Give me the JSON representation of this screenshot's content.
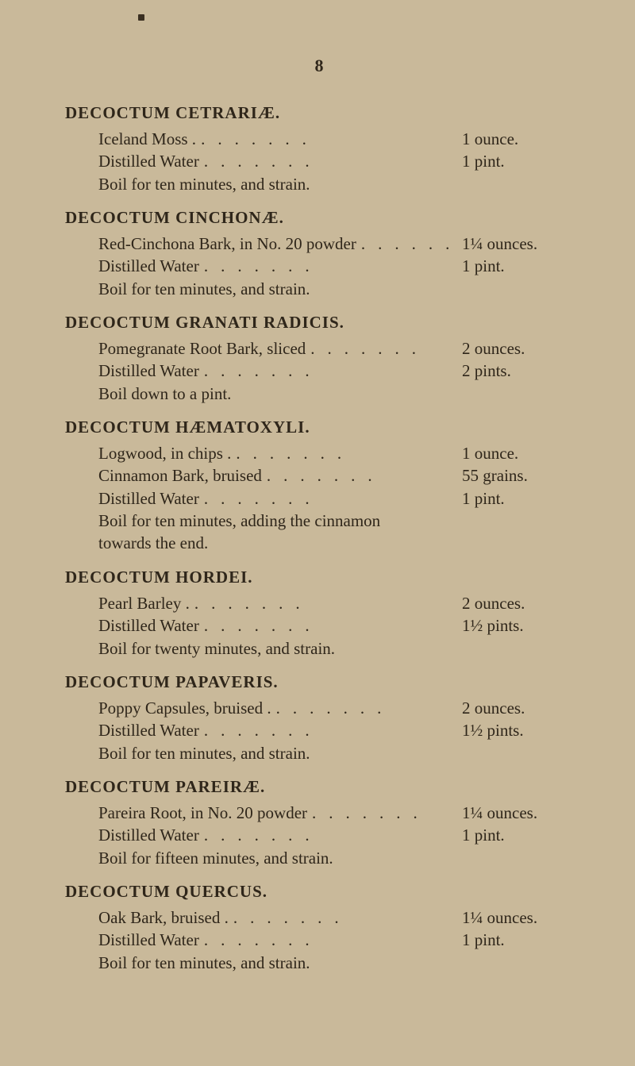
{
  "page_number": "8",
  "dot_fill": ".......",
  "recipes": [
    {
      "title": "DECOCTUM CETRARIÆ.",
      "lines": [
        {
          "ingredient": "Iceland Moss .",
          "amount": "1 ounce."
        },
        {
          "ingredient": "Distilled Water",
          "amount": "1 pint."
        }
      ],
      "instruction": "Boil for ten minutes, and strain."
    },
    {
      "title": "DECOCTUM CINCHONÆ.",
      "lines": [
        {
          "ingredient": "Red-Cinchona Bark, in No. 20 powder",
          "amount": "1¼ ounces."
        },
        {
          "ingredient": "Distilled Water",
          "amount": "1 pint."
        }
      ],
      "instruction": "Boil for ten minutes, and strain."
    },
    {
      "title": "DECOCTUM GRANATI RADICIS.",
      "lines": [
        {
          "ingredient": "Pomegranate Root Bark, sliced",
          "amount": "2 ounces."
        },
        {
          "ingredient": "Distilled Water",
          "amount": "2 pints."
        }
      ],
      "instruction": "Boil down to a pint."
    },
    {
      "title": "DECOCTUM HÆMATOXYLI.",
      "lines": [
        {
          "ingredient": "Logwood, in chips .",
          "amount": "1 ounce."
        },
        {
          "ingredient": "Cinnamon Bark, bruised",
          "amount": "55 grains."
        },
        {
          "ingredient": "Distilled Water",
          "amount": "1 pint."
        }
      ],
      "instruction": "Boil for ten minutes, adding the cinnamon\n    towards the end."
    },
    {
      "title": "DECOCTUM HORDEI.",
      "lines": [
        {
          "ingredient": "Pearl Barley .",
          "amount": "2 ounces."
        },
        {
          "ingredient": "Distilled Water",
          "amount": "1½ pints."
        }
      ],
      "instruction": "Boil for twenty minutes, and strain."
    },
    {
      "title": "DECOCTUM PAPAVERIS.",
      "lines": [
        {
          "ingredient": "Poppy Capsules, bruised .",
          "amount": "2 ounces."
        },
        {
          "ingredient": "Distilled Water",
          "amount": "1½ pints."
        }
      ],
      "instruction": "Boil for ten minutes, and strain."
    },
    {
      "title": "DECOCTUM PAREIRÆ.",
      "lines": [
        {
          "ingredient": "Pareira Root, in No. 20 powder",
          "amount": "1¼ ounces."
        },
        {
          "ingredient": "Distilled Water",
          "amount": "1 pint."
        }
      ],
      "instruction": "Boil for fifteen minutes, and strain."
    },
    {
      "title": "DECOCTUM QUERCUS.",
      "lines": [
        {
          "ingredient": "Oak Bark, bruised .",
          "amount": "1¼ ounces."
        },
        {
          "ingredient": "Distilled Water",
          "amount": "1 pint."
        }
      ],
      "instruction": "Boil for ten minutes, and strain."
    }
  ]
}
